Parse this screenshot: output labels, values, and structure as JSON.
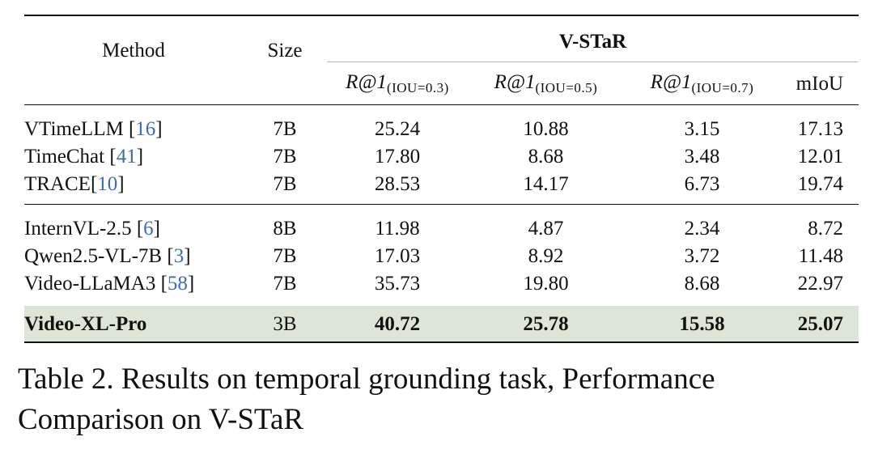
{
  "table": {
    "headers": {
      "method": "Method",
      "size": "Size",
      "group": "V-STaR",
      "metrics": [
        {
          "base": "R@1",
          "sub": "(IOU=0.3)"
        },
        {
          "base": "R@1",
          "sub": "(IOU=0.5)"
        },
        {
          "base": "R@1",
          "sub": "(IOU=0.7)"
        },
        {
          "base": "mIoU",
          "sub": ""
        }
      ]
    },
    "groups": [
      [
        {
          "method": "VTimeLLM ",
          "ref": "16",
          "ref_style": "spaced",
          "size": "7B",
          "values": [
            "25.24",
            "10.88",
            "3.15",
            "17.13"
          ]
        },
        {
          "method": "TimeChat ",
          "ref": "41",
          "ref_style": "spaced",
          "size": "7B",
          "values": [
            "17.80",
            "8.68",
            "3.48",
            "12.01"
          ]
        },
        {
          "method": "TRACE",
          "ref": "10",
          "ref_style": "tight",
          "size": "7B",
          "values": [
            "28.53",
            "14.17",
            "6.73",
            "19.74"
          ]
        }
      ],
      [
        {
          "method": "InternVL-2.5 ",
          "ref": "6",
          "size": "8B",
          "values": [
            "11.98",
            "4.87",
            "2.34",
            "8.72"
          ]
        },
        {
          "method": "Qwen2.5-VL-7B ",
          "ref": "3",
          "size": "7B",
          "values": [
            "17.03",
            "8.92",
            "3.72",
            "11.48"
          ]
        },
        {
          "method": "Video-LLaMA3 ",
          "ref": "58",
          "size": "7B",
          "values": [
            "35.73",
            "19.80",
            "8.68",
            "22.97"
          ]
        }
      ],
      [
        {
          "method": "Video-XL-Pro",
          "ref": "",
          "size": "3B",
          "values": [
            "40.72",
            "25.78",
            "15.58",
            "25.07"
          ]
        }
      ]
    ],
    "highlight_color": "#dde6d6",
    "ref_color": "#3d6bb3"
  },
  "caption": "Table 2. Results on temporal grounding task, Performance Comparison on V-STaR"
}
